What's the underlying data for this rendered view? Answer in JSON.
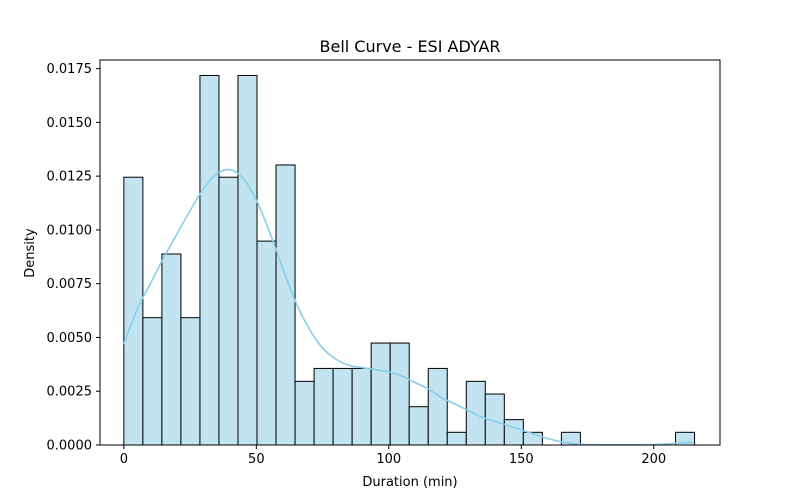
{
  "chart_data": {
    "type": "bar",
    "title": "Bell Curve - ESI ADYAR",
    "xlabel": "Duration (min)",
    "ylabel": "Density",
    "xlim": [
      -9,
      225
    ],
    "ylim": [
      0,
      0.0179
    ],
    "xticks": [
      0,
      50,
      100,
      150,
      200
    ],
    "yticks": [
      "0.0000",
      "0.0025",
      "0.0050",
      "0.0075",
      "0.0100",
      "0.0125",
      "0.0150",
      "0.0175"
    ],
    "grid": false,
    "bins": {
      "start": 0,
      "width": 7.18,
      "densities": [
        0.01245,
        0.00592,
        0.00888,
        0.00592,
        0.01718,
        0.01245,
        0.01718,
        0.00948,
        0.01302,
        0.00296,
        0.00356,
        0.00356,
        0.00356,
        0.00474,
        0.00474,
        0.00178,
        0.00356,
        0.00059,
        0.00296,
        0.00237,
        0.00118,
        0.00059,
        0,
        0.00059,
        0,
        0,
        0,
        0,
        0,
        0.00059
      ]
    },
    "kde": {
      "x": [
        0,
        5,
        10,
        15,
        20,
        25,
        30,
        35,
        40,
        45,
        50,
        55,
        60,
        65,
        70,
        75,
        80,
        85,
        90,
        95,
        100,
        105,
        110,
        115,
        120,
        125,
        130,
        135,
        140,
        145,
        150,
        155,
        160,
        165,
        170,
        175,
        180,
        185,
        190,
        195,
        200,
        205,
        210,
        215
      ],
      "y": [
        0.0047,
        0.0063,
        0.0075,
        0.0087,
        0.0098,
        0.0109,
        0.0119,
        0.0126,
        0.0128,
        0.0124,
        0.0114,
        0.0099,
        0.0082,
        0.0066,
        0.0054,
        0.0045,
        0.004,
        0.0037,
        0.0036,
        0.0035,
        0.0034,
        0.0032,
        0.0029,
        0.0026,
        0.0022,
        0.0019,
        0.0016,
        0.0013,
        0.0011,
        0.0009,
        0.0007,
        0.0005,
        0.0003,
        0.00015,
        6e-05,
        2e-05,
        1e-05,
        1e-05,
        1e-05,
        1e-05,
        2e-05,
        5e-05,
        0.0001,
        0.00013
      ]
    },
    "colors": {
      "bar_fill": "#c2e4f1",
      "bar_edge": "#000000",
      "kde_line": "#87ceeb"
    }
  }
}
